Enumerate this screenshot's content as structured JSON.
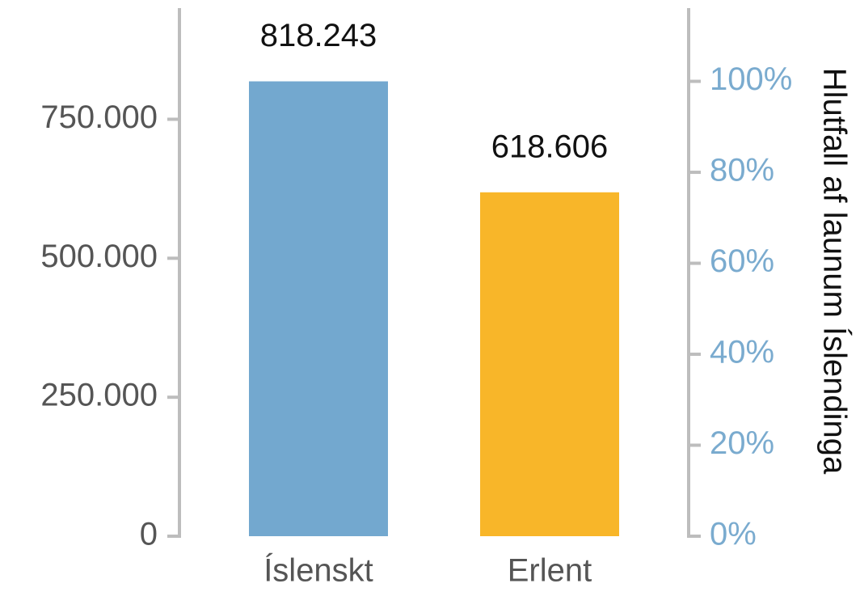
{
  "chart_data": {
    "type": "bar",
    "categories": [
      "Íslenskt",
      "Erlent"
    ],
    "values": [
      818243,
      618606
    ],
    "value_labels": [
      "818.243",
      "618.606"
    ],
    "colors": [
      "#73a8cf",
      "#f8b629"
    ],
    "ylim": [
      0,
      950000
    ],
    "yticks": [
      0,
      {
        "value": 250000,
        "label": "250.000"
      },
      {
        "value": 500000,
        "label": "500.000"
      },
      {
        "value": 750000,
        "label": "750.000"
      }
    ],
    "y2lim": [
      0,
      116.1
    ],
    "y2ticks": [
      {
        "value": 0,
        "label": "0%"
      },
      {
        "value": 20,
        "label": "20%"
      },
      {
        "value": 40,
        "label": "40%"
      },
      {
        "value": 60,
        "label": "60%"
      },
      {
        "value": 80,
        "label": "80%"
      },
      {
        "value": 100,
        "label": "100%"
      }
    ],
    "y2label": "Hlutfall af launum Íslendinga",
    "y2color": "#7aabcf"
  }
}
